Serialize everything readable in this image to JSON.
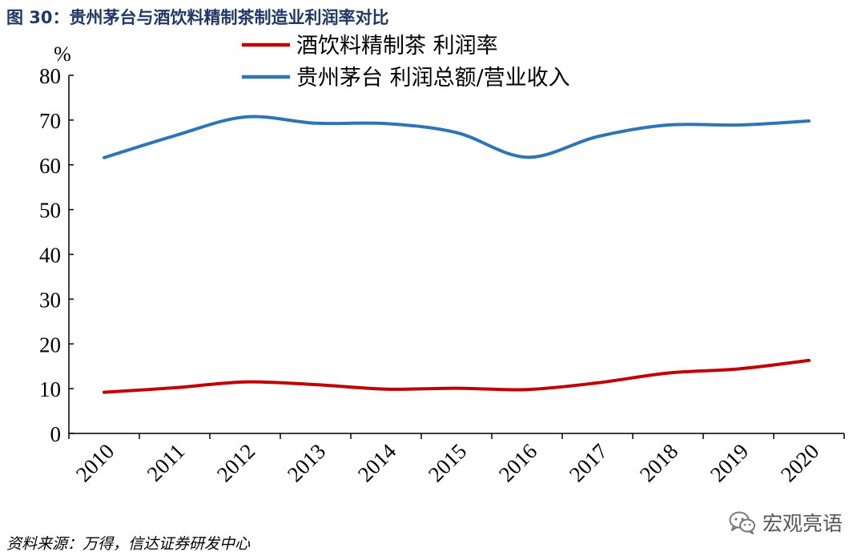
{
  "figure_title": "图 30：贵州茅台与酒饮料精制茶制造业利润率对比",
  "source_note": "资料来源：万得，信达证券研发中心",
  "watermark": {
    "icon": "wechat-icon",
    "text": "宏观亮语"
  },
  "chart_data": {
    "type": "line",
    "title": "图 30：贵州茅台与酒饮料精制茶制造业利润率对比",
    "xlabel": "",
    "ylabel": "%",
    "ylim": [
      0,
      80
    ],
    "yticks": [
      "0",
      "10",
      "20",
      "30",
      "40",
      "50",
      "60",
      "70",
      "80"
    ],
    "categories": [
      "2010",
      "2011",
      "2012",
      "2013",
      "2014",
      "2015",
      "2016",
      "2017",
      "2018",
      "2019",
      "2020"
    ],
    "grid": false,
    "legend_position": "top-right",
    "series": [
      {
        "name": "酒饮料精制茶 利润率",
        "color": "#c00000",
        "values": [
          9.2,
          10.2,
          11.5,
          10.9,
          9.9,
          10.1,
          9.8,
          11.3,
          13.5,
          14.4,
          16.3
        ]
      },
      {
        "name": "贵州茅台 利润总额/营业收入",
        "color": "#2e75b6",
        "values": [
          61.6,
          66.5,
          70.7,
          69.3,
          69.2,
          67.2,
          61.7,
          66.3,
          68.9,
          68.9,
          69.8
        ]
      }
    ]
  }
}
